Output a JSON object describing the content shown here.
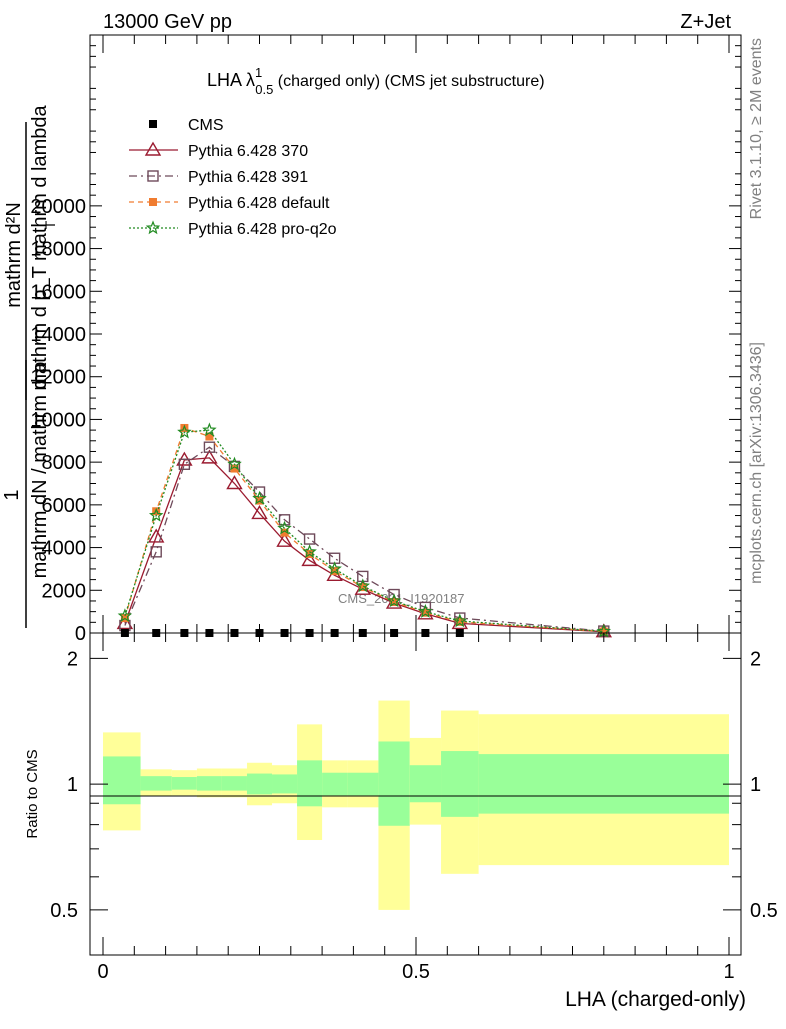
{
  "header": {
    "energy": "13000 GeV pp",
    "process": "Z+Jet"
  },
  "side_labels": {
    "rivet": "Rivet 3.1.10, ≥ 2M events",
    "mcplots": "mcplots.cern.ch [arXiv:1306.3436]"
  },
  "chart_data": [
    {
      "type": "line",
      "title_main": "LHA λ",
      "title_sup": "1",
      "title_sub": "0.5",
      "title_rest": " (charged only) (CMS jet substructure)",
      "ylabel_num": "mathrm d²N",
      "ylabel_den": "mathrm d p_T mathrm d lambda",
      "ylabel_den_sub": "T",
      "ylabel_frac_num": "1",
      "ylabel_frac_den": "mathrm dN / mathrm d p",
      "xlim": [
        0,
        1
      ],
      "ylim": [
        0,
        28000
      ],
      "yticks": [
        0,
        2000,
        4000,
        6000,
        8000,
        10000,
        12000,
        14000,
        16000,
        18000,
        20000
      ],
      "yticks_top_clipped": [
        "8000",
        "6000",
        "4000",
        "2000"
      ],
      "watermark": "CMS_2021_I1920187",
      "legend": [
        "CMS",
        "Pythia 6.428 370",
        "Pythia 6.428 391",
        "Pythia 6.428 default",
        "Pythia 6.428 pro-q2o"
      ],
      "x": [
        0.035,
        0.085,
        0.13,
        0.17,
        0.21,
        0.25,
        0.29,
        0.33,
        0.37,
        0.415,
        0.465,
        0.515,
        0.57,
        0.8
      ],
      "cms_x": [
        0.035,
        0.085,
        0.13,
        0.17,
        0.21,
        0.25,
        0.29,
        0.33,
        0.37,
        0.415,
        0.465,
        0.515,
        0.57
      ],
      "cms_values": [
        0,
        0,
        0,
        0,
        0,
        0,
        0,
        0,
        0,
        0,
        0,
        0,
        0
      ],
      "series": [
        {
          "name": "Pythia 6.428 370",
          "color": "#9b1b30",
          "marker": "triangle-open",
          "dash": "",
          "values": [
            450,
            4500,
            8100,
            8200,
            7000,
            5600,
            4300,
            3400,
            2700,
            2050,
            1400,
            900,
            450,
            60
          ]
        },
        {
          "name": "Pythia 6.428 391",
          "color": "#6e4a5a",
          "marker": "square-open",
          "dash": "8,4,2,4",
          "values": [
            350,
            3800,
            7900,
            8700,
            7800,
            6600,
            5300,
            4400,
            3500,
            2650,
            1800,
            1200,
            700,
            90
          ]
        },
        {
          "name": "Pythia 6.428 default",
          "color": "#f07c30",
          "marker": "square-filled",
          "dash": "5,4",
          "values": [
            700,
            5700,
            9600,
            9200,
            7700,
            6200,
            4700,
            3700,
            2900,
            2150,
            1450,
            950,
            520,
            70
          ]
        },
        {
          "name": "Pythia 6.428 pro-q2o",
          "color": "#228b22",
          "marker": "star",
          "dash": "2,2",
          "values": [
            800,
            5500,
            9400,
            9500,
            7900,
            6300,
            4900,
            3800,
            3000,
            2200,
            1500,
            1000,
            560,
            75
          ]
        }
      ]
    },
    {
      "type": "area",
      "ylabel": "Ratio to CMS",
      "xlabel": "LHA (charged-only)",
      "xlim": [
        0,
        1
      ],
      "ylim": [
        0.39,
        2.3
      ],
      "xticks": [
        "0",
        "0.5",
        "1"
      ],
      "yticks": [
        "0.5",
        "1",
        "2"
      ],
      "reference": 1,
      "bins": [
        {
          "x0": 0.0,
          "x1": 0.06,
          "in_lo": 0.895,
          "in_hi": 1.165,
          "out_lo": 0.775,
          "out_hi": 1.33
        },
        {
          "x0": 0.06,
          "x1": 0.11,
          "in_lo": 0.965,
          "in_hi": 1.045,
          "out_lo": 0.935,
          "out_hi": 1.085
        },
        {
          "x0": 0.11,
          "x1": 0.15,
          "in_lo": 0.97,
          "in_hi": 1.04,
          "out_lo": 0.94,
          "out_hi": 1.08
        },
        {
          "x0": 0.15,
          "x1": 0.19,
          "in_lo": 0.965,
          "in_hi": 1.045,
          "out_lo": 0.93,
          "out_hi": 1.09
        },
        {
          "x0": 0.19,
          "x1": 0.23,
          "in_lo": 0.965,
          "in_hi": 1.045,
          "out_lo": 0.93,
          "out_hi": 1.09
        },
        {
          "x0": 0.23,
          "x1": 0.27,
          "in_lo": 0.945,
          "in_hi": 1.06,
          "out_lo": 0.89,
          "out_hi": 1.125
        },
        {
          "x0": 0.27,
          "x1": 0.31,
          "in_lo": 0.95,
          "in_hi": 1.055,
          "out_lo": 0.9,
          "out_hi": 1.11
        },
        {
          "x0": 0.31,
          "x1": 0.35,
          "in_lo": 0.885,
          "in_hi": 1.14,
          "out_lo": 0.735,
          "out_hi": 1.39
        },
        {
          "x0": 0.35,
          "x1": 0.39,
          "in_lo": 0.94,
          "in_hi": 1.065,
          "out_lo": 0.88,
          "out_hi": 1.14
        },
        {
          "x0": 0.39,
          "x1": 0.44,
          "in_lo": 0.94,
          "in_hi": 1.065,
          "out_lo": 0.88,
          "out_hi": 1.14
        },
        {
          "x0": 0.44,
          "x1": 0.49,
          "in_lo": 0.795,
          "in_hi": 1.265,
          "out_lo": 0.5,
          "out_hi": 1.585
        },
        {
          "x0": 0.49,
          "x1": 0.54,
          "in_lo": 0.905,
          "in_hi": 1.11,
          "out_lo": 0.8,
          "out_hi": 1.29
        },
        {
          "x0": 0.54,
          "x1": 0.6,
          "in_lo": 0.835,
          "in_hi": 1.2,
          "out_lo": 0.61,
          "out_hi": 1.5
        },
        {
          "x0": 0.6,
          "x1": 1.0,
          "in_lo": 0.85,
          "in_hi": 1.18,
          "out_lo": 0.64,
          "out_hi": 1.47
        }
      ],
      "colors": {
        "inner": "#99ff99",
        "outer": "#ffff99"
      }
    }
  ]
}
